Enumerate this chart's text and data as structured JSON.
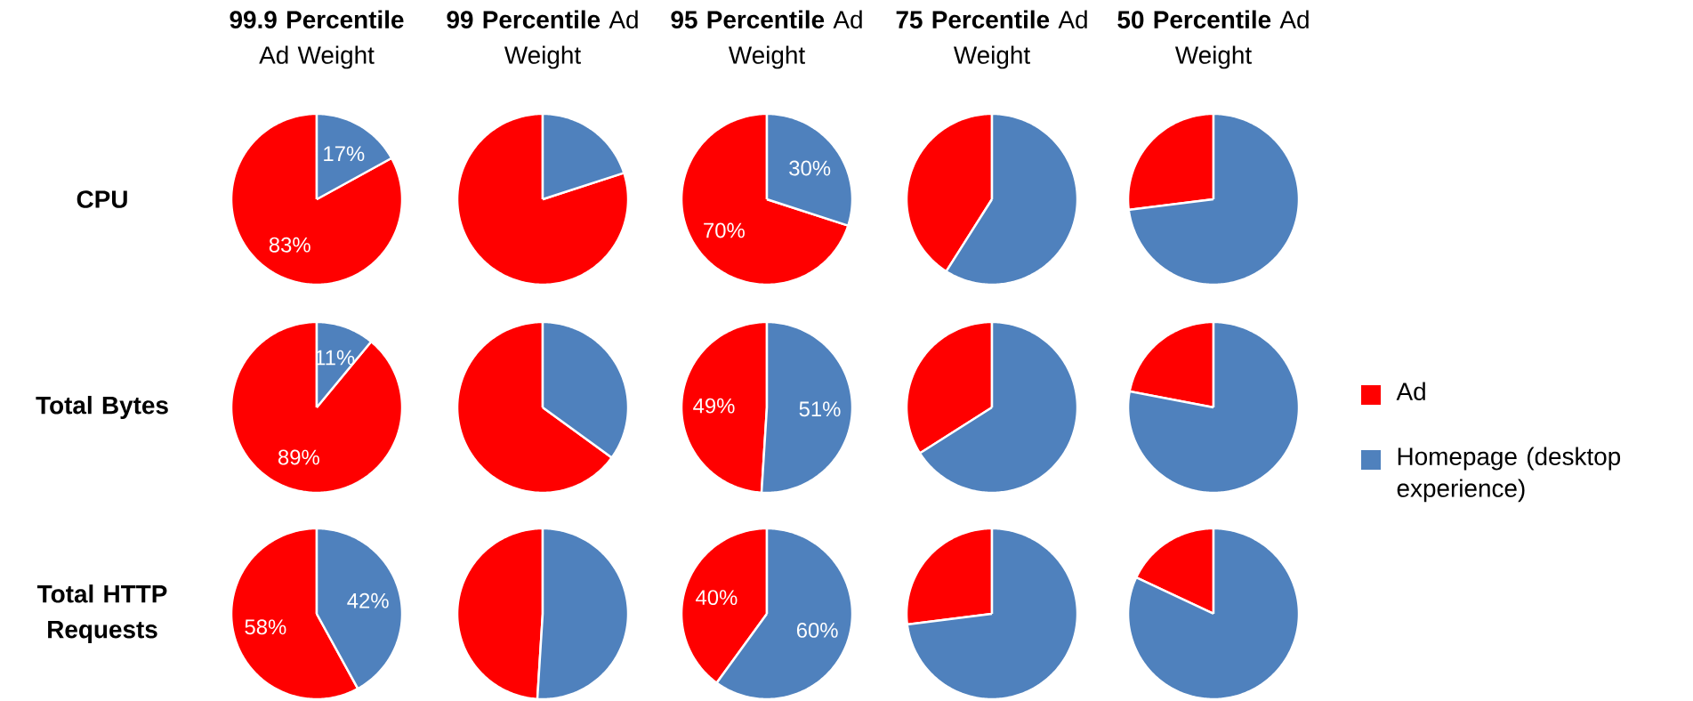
{
  "chart_data": [
    {
      "type": "pie",
      "title": "**99.9 Percentile** Ad Weight",
      "ylabel": "CPU",
      "categories": [
        null,
        null
      ],
      "values": [
        83,
        17
      ],
      "colors": [
        "#ff0000",
        "#4f81bd"
      ],
      "value_labels": [
        "83%",
        "17%"
      ]
    },
    {
      "type": "pie",
      "title": "**99 Percentile** Ad Weight",
      "categories": [
        null,
        null
      ],
      "values": [
        80,
        20
      ],
      "colors": [
        "#ff0000",
        "#4f81bd"
      ]
    },
    {
      "type": "pie",
      "title": "**95 Percentile** Ad Weight",
      "categories": [
        null,
        null
      ],
      "values": [
        70,
        30
      ],
      "colors": [
        "#ff0000",
        "#4f81bd"
      ],
      "value_labels": [
        "70%",
        "30%"
      ]
    },
    {
      "type": "pie",
      "title": "**75 Percentile** Ad Weight",
      "categories": [
        null,
        null
      ],
      "values": [
        41,
        59
      ],
      "colors": [
        "#ff0000",
        "#4f81bd"
      ]
    },
    {
      "type": "pie",
      "title": "**50 Percentile** Ad Weight",
      "categories": [
        null,
        null
      ],
      "values": [
        27,
        73
      ],
      "colors": [
        "#ff0000",
        "#4f81bd"
      ]
    },
    {
      "type": "pie",
      "ylabel": "Total Bytes",
      "categories": [
        null,
        null
      ],
      "values": [
        89,
        11
      ],
      "colors": [
        "#ff0000",
        "#4f81bd"
      ],
      "value_labels": [
        "89%",
        "11%"
      ]
    },
    {
      "type": "pie",
      "categories": [
        null,
        null
      ],
      "values": [
        65,
        35
      ],
      "colors": [
        "#ff0000",
        "#4f81bd"
      ]
    },
    {
      "type": "pie",
      "categories": [
        null,
        null
      ],
      "values": [
        49,
        51
      ],
      "colors": [
        "#ff0000",
        "#4f81bd"
      ],
      "value_labels": [
        "49%",
        "51%"
      ]
    },
    {
      "type": "pie",
      "categories": [
        null,
        null
      ],
      "values": [
        34,
        66
      ],
      "colors": [
        "#ff0000",
        "#4f81bd"
      ]
    },
    {
      "type": "pie",
      "categories": [
        "Ad",
        "Homepage (desktop experience)"
      ],
      "values": [
        22,
        78
      ],
      "colors": [
        "#ff0000",
        "#4f81bd"
      ],
      "legend": "right"
    },
    {
      "type": "pie",
      "ylabel": "Total HTTP Requests",
      "categories": [
        null,
        null
      ],
      "values": [
        58,
        42
      ],
      "colors": [
        "#ff0000",
        "#4f81bd"
      ],
      "value_labels": [
        "58%",
        "42%"
      ]
    },
    {
      "type": "pie",
      "categories": [
        null,
        null
      ],
      "values": [
        49,
        51
      ],
      "colors": [
        "#ff0000",
        "#4f81bd"
      ]
    },
    {
      "type": "pie",
      "categories": [
        null,
        null
      ],
      "values": [
        40,
        60
      ],
      "colors": [
        "#ff0000",
        "#4f81bd"
      ],
      "value_labels": [
        "40%",
        "60%"
      ]
    },
    {
      "type": "pie",
      "categories": [
        null,
        null
      ],
      "values": [
        27,
        73
      ],
      "colors": [
        "#ff0000",
        "#4f81bd"
      ]
    },
    {
      "type": "pie",
      "categories": [
        null,
        null
      ],
      "values": [
        18,
        82
      ],
      "colors": [
        "#ff0000",
        "#4f81bd"
      ]
    }
  ]
}
